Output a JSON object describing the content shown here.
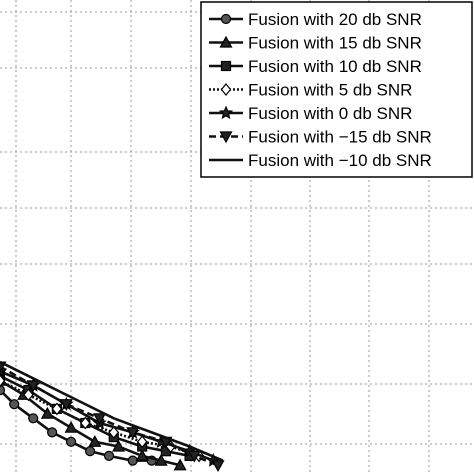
{
  "chart_data": {
    "type": "line",
    "title": "",
    "xlabel": "",
    "ylabel": "",
    "xlim": [
      0,
      1
    ],
    "ylim": [
      0,
      1
    ],
    "grid": true,
    "legend_position": "top-right",
    "series": [
      {
        "name": "Fusion with 20 db SNR",
        "marker": "circle",
        "x": [
          0.0,
          0.03,
          0.07,
          0.11,
          0.15,
          0.19,
          0.23,
          0.28,
          0.32
        ],
        "y": [
          0.17,
          0.14,
          0.11,
          0.08,
          0.06,
          0.04,
          0.03,
          0.02,
          0.02
        ]
      },
      {
        "name": "Fusion with 15 db SNR",
        "marker": "triangle-up",
        "x": [
          0.0,
          0.05,
          0.1,
          0.15,
          0.2,
          0.25,
          0.3,
          0.34,
          0.38
        ],
        "y": [
          0.19,
          0.16,
          0.12,
          0.09,
          0.06,
          0.05,
          0.03,
          0.02,
          0.01
        ]
      },
      {
        "name": "Fusion with 10 db SNR",
        "marker": "square",
        "x": [
          0.0,
          0.06,
          0.12,
          0.18,
          0.24,
          0.3,
          0.35,
          0.4
        ],
        "y": [
          0.2,
          0.17,
          0.13,
          0.1,
          0.07,
          0.05,
          0.04,
          0.03
        ]
      },
      {
        "name": "Fusion with 5 db SNR",
        "marker": "diamond",
        "x": [
          0.0,
          0.06,
          0.12,
          0.18,
          0.24,
          0.3,
          0.36,
          0.42
        ],
        "y": [
          0.19,
          0.16,
          0.13,
          0.1,
          0.08,
          0.06,
          0.05,
          0.03
        ]
      },
      {
        "name": "Fusion with 0 db SNR",
        "marker": "star",
        "x": [
          0.0,
          0.07,
          0.14,
          0.21,
          0.28,
          0.34,
          0.4,
          0.45
        ],
        "y": [
          0.21,
          0.18,
          0.14,
          0.1,
          0.08,
          0.06,
          0.04,
          0.02
        ]
      },
      {
        "name": "Fusion with −15 db SNR",
        "marker": "triangle-down",
        "x": [
          0.0,
          0.07,
          0.14,
          0.21,
          0.28,
          0.35,
          0.41,
          0.46
        ],
        "y": [
          0.22,
          0.18,
          0.14,
          0.11,
          0.08,
          0.06,
          0.03,
          0.01
        ]
      },
      {
        "name": "Fusion with −10 db SNR",
        "marker": "none",
        "x": [
          0.0,
          0.08,
          0.16,
          0.24,
          0.32,
          0.4,
          0.47
        ],
        "y": [
          0.23,
          0.19,
          0.15,
          0.11,
          0.08,
          0.05,
          0.02
        ]
      }
    ]
  }
}
